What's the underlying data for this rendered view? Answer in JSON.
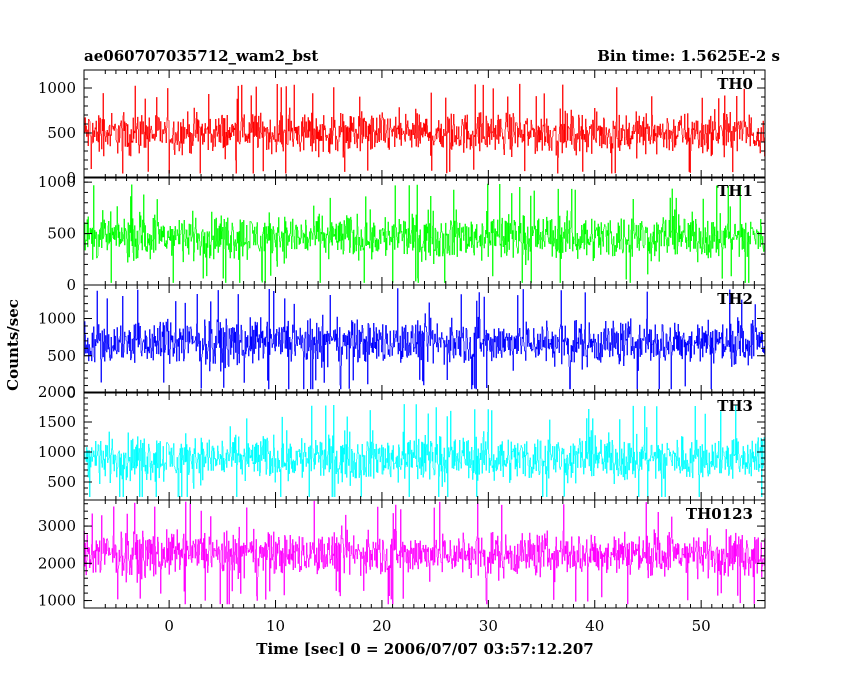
{
  "chart_data": {
    "type": "line",
    "title": "ae060707035712_wam2_bst",
    "subtitle": "Bin time: 1.5625E-2 s",
    "xlabel": "Time [sec] 0 = 2006/07/07 03:57:12.207",
    "ylabel": "Counts/sec",
    "xlim": [
      -8,
      56
    ],
    "x_ticks": [
      0,
      10,
      20,
      30,
      40,
      50
    ],
    "x_data_range": [
      -8,
      56
    ],
    "panels": [
      {
        "name": "TH0",
        "color": "#ff0000",
        "ylim": [
          0,
          1200
        ],
        "y_ticks": [
          0,
          500,
          1000
        ],
        "mean": 500,
        "spread": 420,
        "min": 50,
        "max": 1200
      },
      {
        "name": "TH1",
        "color": "#00ff00",
        "ylim": [
          0,
          1050
        ],
        "y_ticks": [
          0,
          500,
          1000
        ],
        "mean": 470,
        "spread": 400,
        "min": 20,
        "max": 1050
      },
      {
        "name": "TH2",
        "color": "#0000ff",
        "ylim": [
          0,
          1450
        ],
        "y_ticks": [
          0,
          500,
          1000
        ],
        "mean": 680,
        "spread": 560,
        "min": 50,
        "max": 1450
      },
      {
        "name": "TH3",
        "color": "#00ffff",
        "ylim": [
          200,
          2000
        ],
        "y_ticks": [
          500,
          1000,
          1500,
          2000
        ],
        "mean": 900,
        "spread": 700,
        "min": 250,
        "max": 1900
      },
      {
        "name": "TH0123",
        "color": "#ff00ff",
        "ylim": [
          800,
          3700
        ],
        "y_ticks": [
          1000,
          2000,
          3000
        ],
        "mean": 2250,
        "spread": 1100,
        "min": 900,
        "max": 3700
      }
    ]
  }
}
